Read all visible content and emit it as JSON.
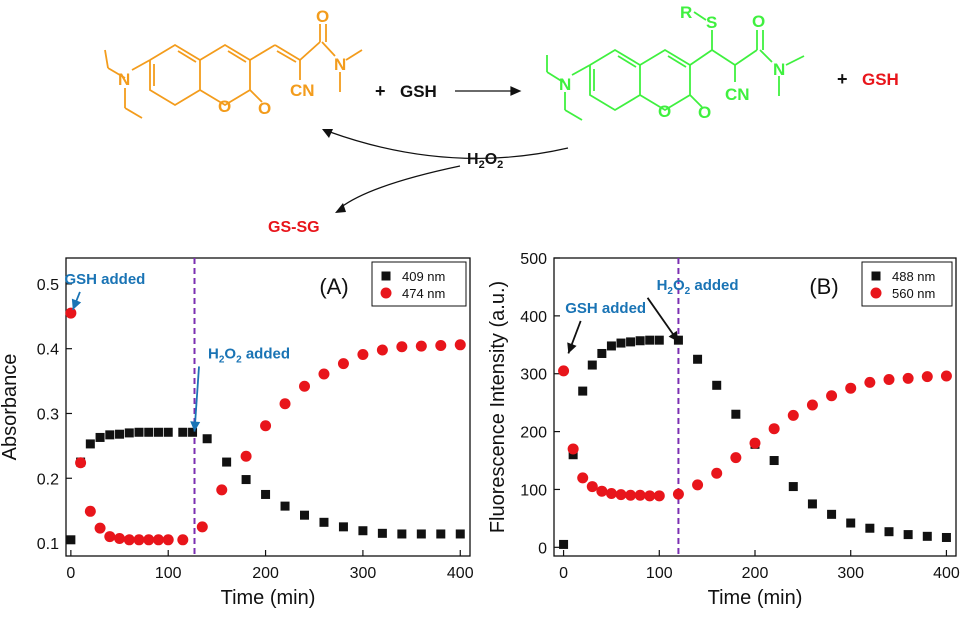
{
  "scheme": {
    "plus_1": "+",
    "reagent": "GSH",
    "plus_2": "+",
    "released": "GSH",
    "oxidant_main": "H",
    "oxidant_sub1": "2",
    "oxidant_o": "O",
    "oxidant_sub2": "2",
    "byproduct": "GS-SG",
    "reactant_atoms": {
      "n": "N",
      "o_ring": "O",
      "o_keto": "O",
      "o_amide": "O",
      "n_amide": "N",
      "cn": "CN"
    },
    "product_atoms": {
      "r": "R",
      "s": "S",
      "n": "N",
      "o_ring": "O",
      "o_keto": "O",
      "o_amide": "O",
      "n_amide": "N",
      "cn": "CN"
    },
    "colors": {
      "reactant": "#f39c1c",
      "product": "#3ff03f",
      "byproduct": "#e8151b",
      "text": "#111111"
    }
  },
  "chart_data": [
    {
      "type": "scatter",
      "panel_label": "(A)",
      "xlabel": "Time (min)",
      "ylabel": "Absorbance",
      "xlim": [
        -5,
        410
      ],
      "ylim": [
        0.08,
        0.54
      ],
      "xticks": [
        0,
        100,
        200,
        300,
        400
      ],
      "yticks": [
        0.1,
        0.2,
        0.3,
        0.4,
        0.5
      ],
      "grid": false,
      "legend": "top-right",
      "vline": {
        "x": 127,
        "color": "#7b2fb2"
      },
      "annotations": [
        {
          "text": "GSH added",
          "x": 35,
          "y": 0.5,
          "arrow_to": [
            2,
            0.46
          ],
          "color": "#1a74b5"
        },
        {
          "text_main": "H",
          "text_sub": "2",
          "text_main2": "O",
          "text_sub2": "2",
          "text_rest": " added",
          "x": 183,
          "y": 0.385,
          "arrow_to": [
            127,
            0.272
          ],
          "color": "#1a74b5"
        }
      ],
      "series": [
        {
          "name": "409 nm",
          "marker": "square",
          "color": "#111111",
          "x": [
            0,
            10,
            20,
            30,
            40,
            50,
            60,
            70,
            80,
            90,
            100,
            115,
            125,
            140,
            160,
            180,
            200,
            220,
            240,
            260,
            280,
            300,
            320,
            340,
            360,
            380,
            400
          ],
          "y": [
            0.105,
            0.225,
            0.253,
            0.263,
            0.267,
            0.268,
            0.27,
            0.271,
            0.271,
            0.271,
            0.271,
            0.271,
            0.271,
            0.261,
            0.225,
            0.198,
            0.175,
            0.157,
            0.143,
            0.132,
            0.125,
            0.119,
            0.115,
            0.114,
            0.114,
            0.114,
            0.114
          ]
        },
        {
          "name": "474 nm",
          "marker": "circle",
          "color": "#e8151b",
          "x": [
            0,
            10,
            20,
            30,
            40,
            50,
            60,
            70,
            80,
            90,
            100,
            115,
            135,
            155,
            180,
            200,
            220,
            240,
            260,
            280,
            300,
            320,
            340,
            360,
            380,
            400
          ],
          "y": [
            0.455,
            0.224,
            0.149,
            0.123,
            0.11,
            0.107,
            0.105,
            0.105,
            0.105,
            0.105,
            0.105,
            0.105,
            0.125,
            0.182,
            0.234,
            0.281,
            0.315,
            0.342,
            0.361,
            0.377,
            0.391,
            0.398,
            0.403,
            0.404,
            0.405,
            0.406
          ]
        }
      ]
    },
    {
      "type": "scatter",
      "panel_label": "(B)",
      "xlabel": "Time (min)",
      "ylabel": "Fluorescence Intensity (a.u.)",
      "xlim": [
        -10,
        410
      ],
      "ylim": [
        -15,
        500
      ],
      "xticks": [
        0,
        100,
        200,
        300,
        400
      ],
      "yticks": [
        0,
        100,
        200,
        300,
        400,
        500
      ],
      "grid": false,
      "legend": "top-right",
      "vline": {
        "x": 120,
        "color": "#7b2fb2"
      },
      "annotations": [
        {
          "text": "GSH added",
          "x": 44,
          "y": 405,
          "arrow_to": [
            5,
            335
          ],
          "color": "#1a74b5"
        },
        {
          "text_main": "H",
          "text_sub": "2",
          "text_main2": "O",
          "text_sub2": "2",
          "text_rest": " added",
          "x": 140,
          "y": 445,
          "arrow_to": [
            120,
            355
          ],
          "color": "#1a74b5"
        }
      ],
      "series": [
        {
          "name": "488 nm",
          "marker": "square",
          "color": "#111111",
          "x": [
            0,
            10,
            20,
            30,
            40,
            50,
            60,
            70,
            80,
            90,
            100,
            120,
            140,
            160,
            180,
            200,
            220,
            240,
            260,
            280,
            300,
            320,
            340,
            360,
            380,
            400
          ],
          "y": [
            5,
            160,
            270,
            315,
            335,
            348,
            353,
            355,
            357,
            358,
            358,
            358,
            325,
            280,
            230,
            178,
            150,
            105,
            75,
            57,
            42,
            33,
            27,
            22,
            19,
            17
          ]
        },
        {
          "name": "560 nm",
          "marker": "circle",
          "color": "#e8151b",
          "x": [
            0,
            10,
            20,
            30,
            40,
            50,
            60,
            70,
            80,
            90,
            100,
            120,
            140,
            160,
            180,
            200,
            220,
            240,
            260,
            280,
            300,
            320,
            340,
            360,
            380,
            400
          ],
          "y": [
            305,
            170,
            120,
            105,
            97,
            93,
            91,
            90,
            90,
            89,
            89,
            92,
            108,
            128,
            155,
            180,
            205,
            228,
            246,
            262,
            275,
            285,
            290,
            292,
            295,
            296
          ]
        }
      ]
    }
  ]
}
